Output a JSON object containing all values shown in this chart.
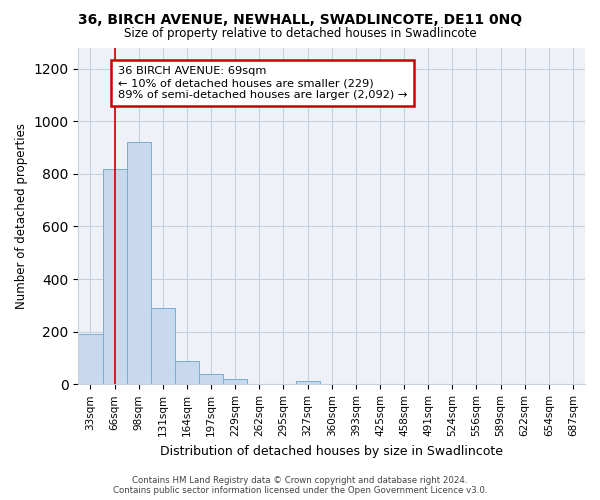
{
  "title": "36, BIRCH AVENUE, NEWHALL, SWADLINCOTE, DE11 0NQ",
  "subtitle": "Size of property relative to detached houses in Swadlincote",
  "xlabel": "Distribution of detached houses by size in Swadlincote",
  "ylabel": "Number of detached properties",
  "bar_color": "#c8d9ee",
  "bar_edge_color": "#7aadd4",
  "categories": [
    "33sqm",
    "66sqm",
    "98sqm",
    "131sqm",
    "164sqm",
    "197sqm",
    "229sqm",
    "262sqm",
    "295sqm",
    "327sqm",
    "360sqm",
    "393sqm",
    "425sqm",
    "458sqm",
    "491sqm",
    "524sqm",
    "556sqm",
    "589sqm",
    "622sqm",
    "654sqm",
    "687sqm"
  ],
  "values": [
    190,
    820,
    920,
    290,
    88,
    38,
    20,
    0,
    0,
    12,
    0,
    0,
    0,
    0,
    0,
    0,
    0,
    0,
    0,
    0,
    0
  ],
  "ylim": [
    0,
    1280
  ],
  "yticks": [
    0,
    200,
    400,
    600,
    800,
    1000,
    1200
  ],
  "property_line_x": 1.0,
  "annotation_line1": "36 BIRCH AVENUE: 69sqm",
  "annotation_line2": "← 10% of detached houses are smaller (229)",
  "annotation_line3": "89% of semi-detached houses are larger (2,092) →",
  "annotation_box_color": "white",
  "annotation_box_edge_color": "#cc0000",
  "footnote1": "Contains HM Land Registry data © Crown copyright and database right 2024.",
  "footnote2": "Contains public sector information licensed under the Open Government Licence v3.0.",
  "grid_color": "#c8d0dc",
  "background_color": "#eef2f8"
}
